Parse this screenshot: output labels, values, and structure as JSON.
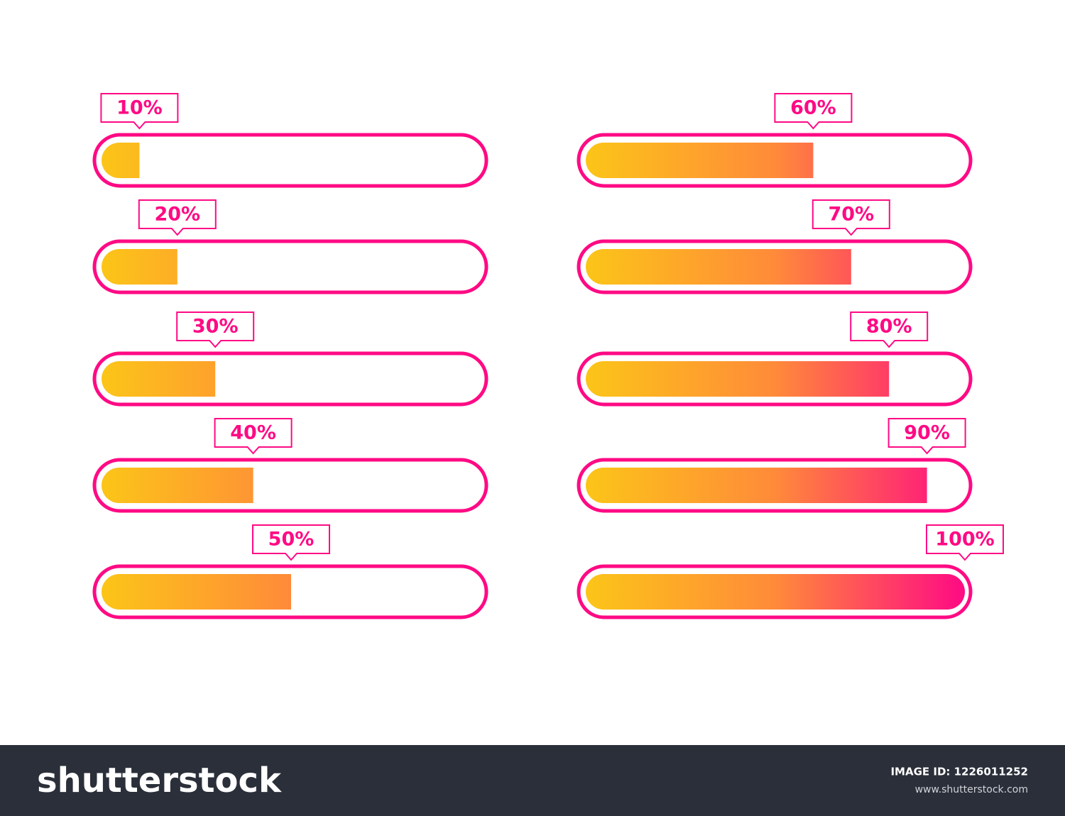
{
  "range": [
    0,
    100
  ],
  "bars": [
    {
      "label": "10%",
      "value": 10
    },
    {
      "label": "20%",
      "value": 20
    },
    {
      "label": "30%",
      "value": 30
    },
    {
      "label": "40%",
      "value": 40
    },
    {
      "label": "50%",
      "value": 50
    },
    {
      "label": "60%",
      "value": 60
    },
    {
      "label": "70%",
      "value": 70
    },
    {
      "label": "80%",
      "value": 80
    },
    {
      "label": "90%",
      "value": 90
    },
    {
      "label": "100%",
      "value": 100
    }
  ],
  "footer": {
    "logo": "shutterstock",
    "image_id": "IMAGE ID: 1226011252",
    "url": "www.shutterstock.com"
  }
}
